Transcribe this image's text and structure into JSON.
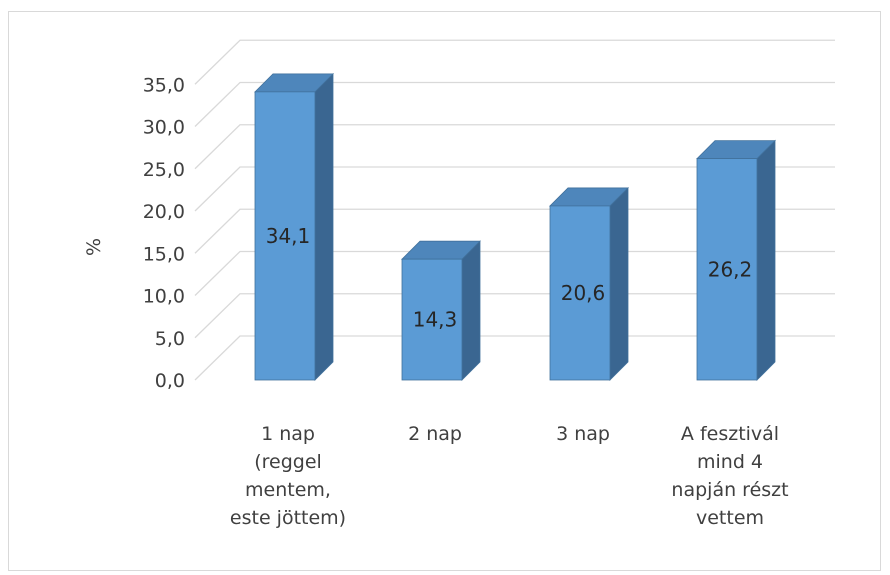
{
  "chart_data": {
    "type": "bar",
    "bar_style": "3d-column",
    "categories": [
      [
        "1 nap",
        "(reggel",
        "mentem,",
        "este jöttem)"
      ],
      [
        "2 nap"
      ],
      [
        "3 nap"
      ],
      [
        "A fesztivál",
        "mind 4",
        "napján részt",
        "vettem"
      ]
    ],
    "values": [
      34.1,
      14.3,
      20.6,
      26.2
    ],
    "data_labels": [
      "34,1",
      "14,3",
      "20,6",
      "26,2"
    ],
    "title": "",
    "xlabel": "",
    "ylabel": "%",
    "ylim": [
      0,
      35
    ],
    "y_ticks": [
      "0,0",
      "5,0",
      "10,0",
      "15,0",
      "20,0",
      "25,0",
      "30,0",
      "35,0"
    ],
    "grid": true,
    "legend": "none",
    "colors": {
      "bar_front": "#5b9bd5",
      "bar_side": "#3a6691",
      "bar_top": "#4e86bb",
      "bar_edge": "#41719c",
      "grid": "#d9d9d9",
      "text": "#404040"
    }
  }
}
